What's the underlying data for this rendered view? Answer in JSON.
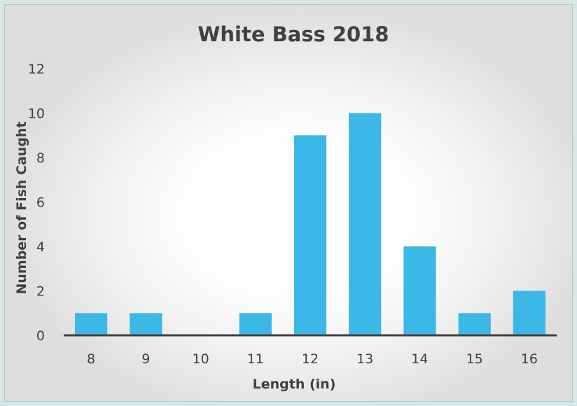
{
  "chart_data": {
    "type": "bar",
    "title": "White Bass 2018",
    "xlabel": "Length (in)",
    "ylabel": "Number of Fish Caught",
    "categories": [
      "8",
      "9",
      "10",
      "11",
      "12",
      "13",
      "14",
      "15",
      "16"
    ],
    "values": [
      1,
      1,
      0,
      1,
      9,
      10,
      4,
      1,
      2
    ],
    "ylim": [
      0,
      12
    ],
    "yticks": [
      "0",
      "2",
      "4",
      "6",
      "8",
      "10",
      "12"
    ],
    "grid": false,
    "legend": "none",
    "bar_color": "#3cb8e6",
    "axis_color": "#404040"
  }
}
